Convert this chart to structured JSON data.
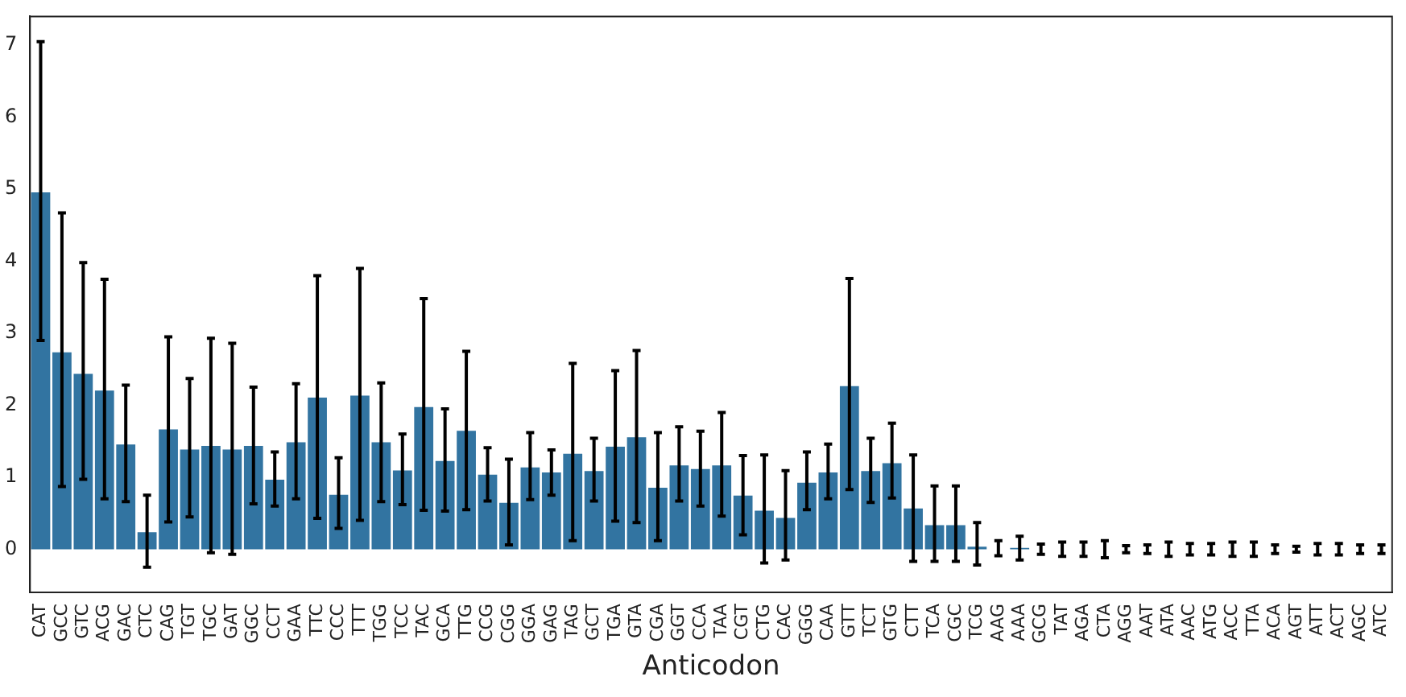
{
  "chart_data": {
    "type": "bar",
    "xlabel": "Anticodon",
    "categories": [
      "CAT",
      "GCC",
      "GTC",
      "ACG",
      "GAC",
      "CTC",
      "CAG",
      "TGT",
      "TGC",
      "GAT",
      "GGC",
      "CCT",
      "GAA",
      "TTC",
      "CCC",
      "TTT",
      "TGG",
      "TCC",
      "TAC",
      "GCA",
      "TTG",
      "CCG",
      "CGG",
      "GGA",
      "GAG",
      "TAG",
      "GCT",
      "TGA",
      "GTA",
      "CGA",
      "GGT",
      "CCA",
      "TAA",
      "CGT",
      "CTG",
      "CAC",
      "GGG",
      "CAA",
      "GTT",
      "TCT",
      "GTG",
      "CTT",
      "TCA",
      "CGC",
      "TCG",
      "AAG",
      "AAA",
      "GCG",
      "TAT",
      "AGA",
      "CTA",
      "AGG",
      "AAT",
      "ATA",
      "AAC",
      "ATG",
      "ACC",
      "TTA",
      "ACA",
      "AGT",
      "ATT",
      "ACT",
      "AGC",
      "ATC"
    ],
    "values": [
      4.97,
      2.75,
      2.45,
      2.22,
      1.47,
      0.25,
      1.68,
      1.4,
      1.45,
      1.4,
      1.45,
      0.98,
      1.5,
      2.12,
      0.77,
      2.15,
      1.5,
      1.11,
      1.99,
      1.24,
      1.66,
      1.05,
      0.66,
      1.15,
      1.08,
      1.34,
      1.1,
      1.44,
      1.57,
      0.87,
      1.18,
      1.13,
      1.18,
      0.76,
      0.55,
      0.45,
      0.94,
      1.08,
      2.28,
      1.1,
      1.21,
      0.58,
      0.35,
      0.35,
      0.05,
      0,
      0.02,
      0,
      0,
      0,
      0,
      0,
      0,
      0,
      0,
      0,
      0,
      0,
      0,
      0,
      0,
      0,
      0,
      0
    ],
    "errors": [
      [
        2.9,
        7.05
      ],
      [
        0.87,
        4.67
      ],
      [
        0.97,
        3.98
      ],
      [
        0.7,
        3.75
      ],
      [
        0.66,
        2.28
      ],
      [
        -0.25,
        0.75
      ],
      [
        0.38,
        2.95
      ],
      [
        0.45,
        2.37
      ],
      [
        -0.05,
        2.93
      ],
      [
        -0.07,
        2.86
      ],
      [
        0.63,
        2.25
      ],
      [
        0.6,
        1.35
      ],
      [
        0.7,
        2.3
      ],
      [
        0.43,
        3.8
      ],
      [
        0.29,
        1.27
      ],
      [
        0.4,
        3.9
      ],
      [
        0.66,
        2.31
      ],
      [
        0.62,
        1.6
      ],
      [
        0.54,
        3.48
      ],
      [
        0.53,
        1.95
      ],
      [
        0.55,
        2.75
      ],
      [
        0.67,
        1.41
      ],
      [
        0.06,
        1.25
      ],
      [
        0.69,
        1.62
      ],
      [
        0.75,
        1.38
      ],
      [
        0.12,
        2.58
      ],
      [
        0.67,
        1.54
      ],
      [
        0.39,
        2.48
      ],
      [
        0.37,
        2.76
      ],
      [
        0.12,
        1.62
      ],
      [
        0.67,
        1.7
      ],
      [
        0.6,
        1.64
      ],
      [
        0.46,
        1.9
      ],
      [
        0.2,
        1.3
      ],
      [
        -0.19,
        1.31
      ],
      [
        -0.15,
        1.09
      ],
      [
        0.55,
        1.35
      ],
      [
        0.7,
        1.46
      ],
      [
        0.83,
        3.76
      ],
      [
        0.65,
        1.54
      ],
      [
        0.71,
        1.75
      ],
      [
        -0.17,
        1.31
      ],
      [
        -0.17,
        0.88
      ],
      [
        -0.17,
        0.88
      ],
      [
        -0.22,
        0.37
      ],
      [
        -0.09,
        0.12
      ],
      [
        -0.15,
        0.18
      ],
      0.07,
      0.1,
      0.1,
      0.12,
      0.05,
      0.06,
      0.1,
      0.08,
      0.08,
      0.1,
      0.1,
      0.06,
      0.04,
      0.08,
      0.08,
      0.06,
      0.06
    ],
    "color": "#3274a1",
    "ylim": [
      -0.6,
      7.4
    ],
    "yticks": [
      0,
      1,
      2,
      3,
      4,
      5,
      6,
      7
    ],
    "grid": false,
    "legend": false
  }
}
